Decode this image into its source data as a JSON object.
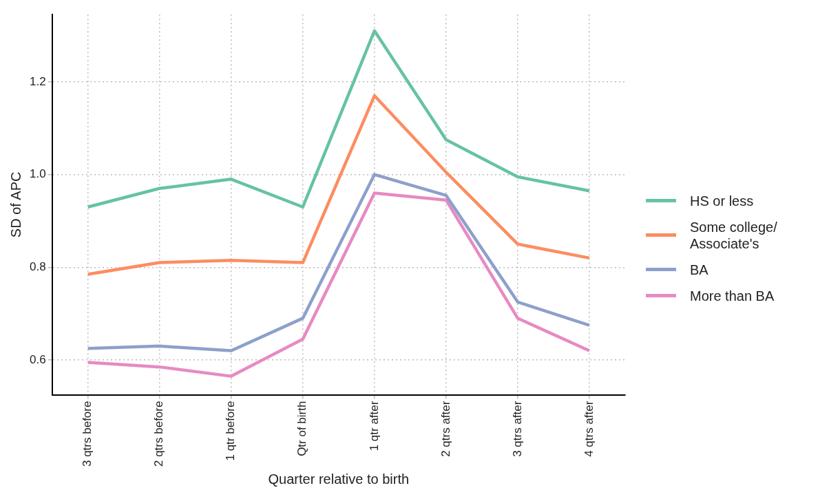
{
  "chart_data": {
    "type": "line",
    "xlabel": "Quarter relative to birth",
    "ylabel": "SD of APC",
    "categories": [
      "3 qtrs before",
      "2 qtrs before",
      "1 qtr before",
      "Qtr of birth",
      "1 qtr after",
      "2 qtrs after",
      "3 qtrs after",
      "4 qtrs after"
    ],
    "series": [
      {
        "name": "HS or less",
        "color": "#66c2a5",
        "values": [
          0.93,
          0.97,
          0.99,
          0.93,
          1.31,
          1.075,
          0.995,
          0.965
        ]
      },
      {
        "name": "Some college/\nAssociate's",
        "color": "#fc8d62",
        "values": [
          0.785,
          0.81,
          0.815,
          0.81,
          1.17,
          1.005,
          0.85,
          0.82
        ]
      },
      {
        "name": "BA",
        "color": "#8da0cb",
        "values": [
          0.625,
          0.63,
          0.62,
          0.69,
          1.0,
          0.955,
          0.725,
          0.675
        ]
      },
      {
        "name": "More than BA",
        "color": "#e78ac3",
        "values": [
          0.595,
          0.585,
          0.565,
          0.645,
          0.96,
          0.945,
          0.69,
          0.62
        ]
      }
    ],
    "ylim": [
      0.525,
      1.345
    ],
    "yticks": [
      0.6,
      0.8,
      {
        "value": 1.0,
        "label": "1.0"
      },
      1.2
    ],
    "grid": true,
    "legend": "right",
    "marker": "none",
    "line_style": "solid"
  }
}
